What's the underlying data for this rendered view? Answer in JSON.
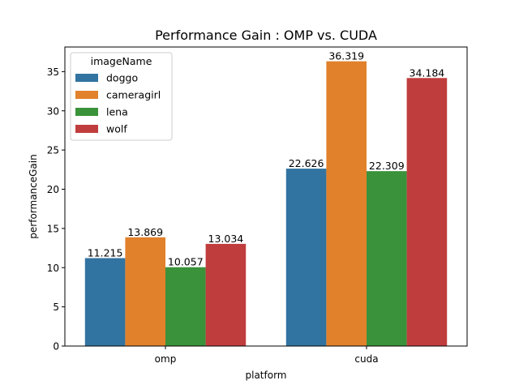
{
  "chart_data": {
    "type": "bar",
    "title": "Performance Gain : OMP vs. CUDA",
    "xlabel": "platform",
    "ylabel": "performanceGain",
    "categories": [
      "omp",
      "cuda"
    ],
    "ylim": [
      0,
      38.14
    ],
    "yticks": [
      0,
      5,
      10,
      15,
      20,
      25,
      30,
      35
    ],
    "legend_title": "imageName",
    "legend_position": "upper-left",
    "grid": false,
    "series": [
      {
        "name": "doggo",
        "color": "#3274a1",
        "values": [
          11.215,
          22.626
        ],
        "labels": [
          "11.215",
          "22.626"
        ]
      },
      {
        "name": "cameragirl",
        "color": "#e1812c",
        "values": [
          13.869,
          36.319
        ],
        "labels": [
          "13.869",
          "36.319"
        ]
      },
      {
        "name": "lena",
        "color": "#3a923a",
        "values": [
          10.057,
          22.309
        ],
        "labels": [
          "10.057",
          "22.309"
        ]
      },
      {
        "name": "wolf",
        "color": "#c03d3e",
        "values": [
          13.034,
          34.184
        ],
        "labels": [
          "13.034",
          "34.184"
        ]
      }
    ]
  }
}
